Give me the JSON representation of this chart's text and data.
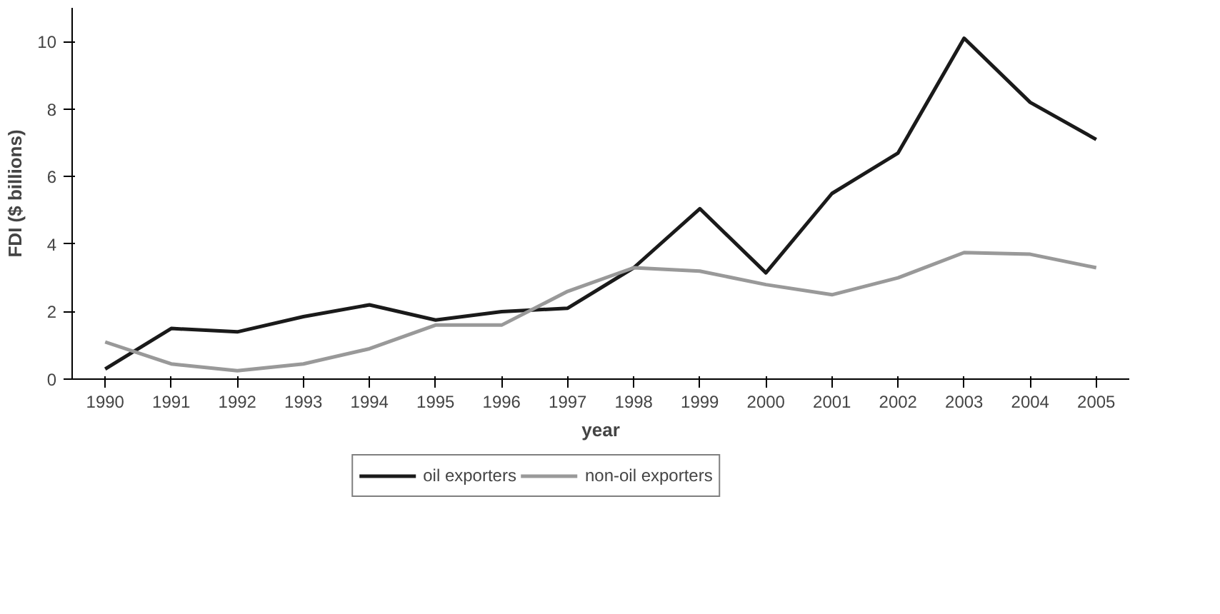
{
  "chart_data": {
    "type": "line",
    "xlabel": "year",
    "ylabel": "FDI ($ billions)",
    "categories": [
      "1990",
      "1991",
      "1992",
      "1993",
      "1994",
      "1995",
      "1996",
      "1997",
      "1998",
      "1999",
      "2000",
      "2001",
      "2002",
      "2003",
      "2004",
      "2005"
    ],
    "series": [
      {
        "name": "oil exporters",
        "color": "#1a1a1a",
        "values": [
          0.3,
          1.5,
          1.4,
          1.85,
          2.2,
          1.75,
          2.0,
          2.1,
          3.3,
          5.05,
          3.15,
          5.5,
          6.7,
          10.1,
          8.2,
          7.1
        ]
      },
      {
        "name": "non-oil exporters",
        "color": "#999999",
        "values": [
          1.1,
          0.45,
          0.25,
          0.45,
          0.9,
          1.6,
          1.6,
          2.6,
          3.3,
          3.2,
          2.8,
          2.5,
          3.0,
          3.75,
          3.7,
          3.3
        ]
      }
    ],
    "ylim": [
      0,
      11
    ],
    "yticks": [
      0,
      2,
      4,
      6,
      8,
      10
    ],
    "grid": false,
    "legend": "bottom",
    "marker": "none",
    "line_style": "solid"
  }
}
